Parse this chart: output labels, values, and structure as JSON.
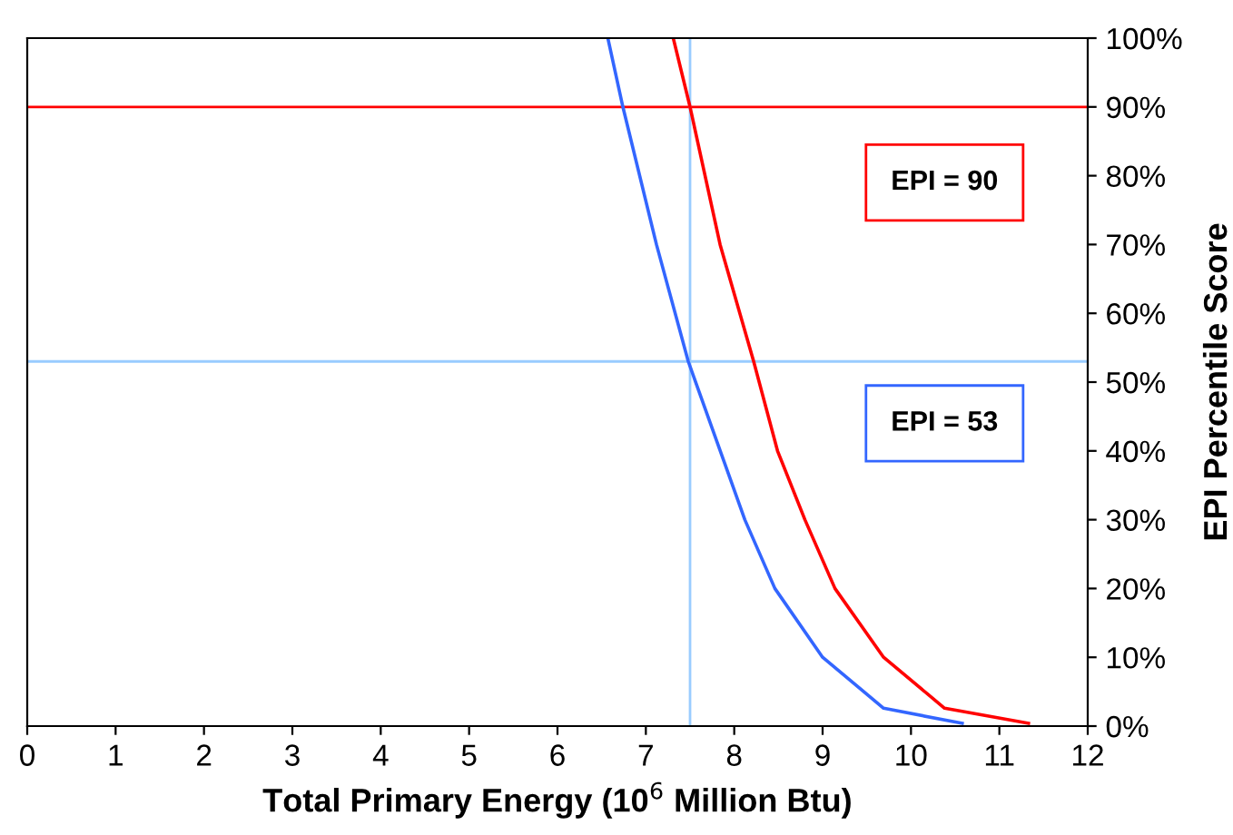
{
  "chart_data": {
    "type": "line",
    "xlabel": "Total Primary Energy (10$^{6}$ Million Btu)",
    "ylabel": "EPI Percentile Score",
    "series": [
      {
        "color": "#3366ff",
        "x": [
          6.57,
          6.74,
          7.12,
          7.48,
          8.12,
          8.46,
          9.0,
          9.69,
          10.58
        ],
        "values": [
          100,
          90,
          70,
          53,
          30,
          20,
          10,
          2.6,
          0.4
        ]
      },
      {
        "color": "#ff0000",
        "x": [
          7.31,
          7.5,
          7.84,
          8.22,
          8.49,
          8.8,
          9.14,
          9.69,
          10.38,
          11.33
        ],
        "values": [
          100,
          90,
          70,
          53,
          40,
          30,
          20,
          10,
          2.6,
          0.4
        ]
      }
    ],
    "xlim": [
      0,
      12
    ],
    "xticks": [
      0,
      1,
      2,
      3,
      4,
      5,
      6,
      7,
      8,
      9,
      10,
      11,
      12
    ],
    "ylim": [
      0,
      100
    ],
    "yticks": [
      {
        "value": 0,
        "label": "0%"
      },
      {
        "value": 10,
        "label": "10%"
      },
      {
        "value": 20,
        "label": "20%"
      },
      {
        "value": 30,
        "label": "30%"
      },
      {
        "value": 40,
        "label": "40%"
      },
      {
        "value": 50,
        "label": "50%"
      },
      {
        "value": 60,
        "label": "60%"
      },
      {
        "value": 70,
        "label": "70%"
      },
      {
        "value": 80,
        "label": "80%"
      },
      {
        "value": 90,
        "label": "90%"
      },
      {
        "value": 100,
        "label": "100%"
      }
    ],
    "ref_lines": [
      {
        "axis": "y",
        "value": 90,
        "color": "#ff0000"
      },
      {
        "axis": "y",
        "value": 53,
        "color": "#99ccff"
      },
      {
        "axis": "x",
        "value": 7.5,
        "color": "#99ccff"
      }
    ],
    "annotations": [
      "EPI = 90",
      "EPI = 53"
    ],
    "marker": "none",
    "line_style": "solid",
    "grid": false,
    "legend": false
  }
}
